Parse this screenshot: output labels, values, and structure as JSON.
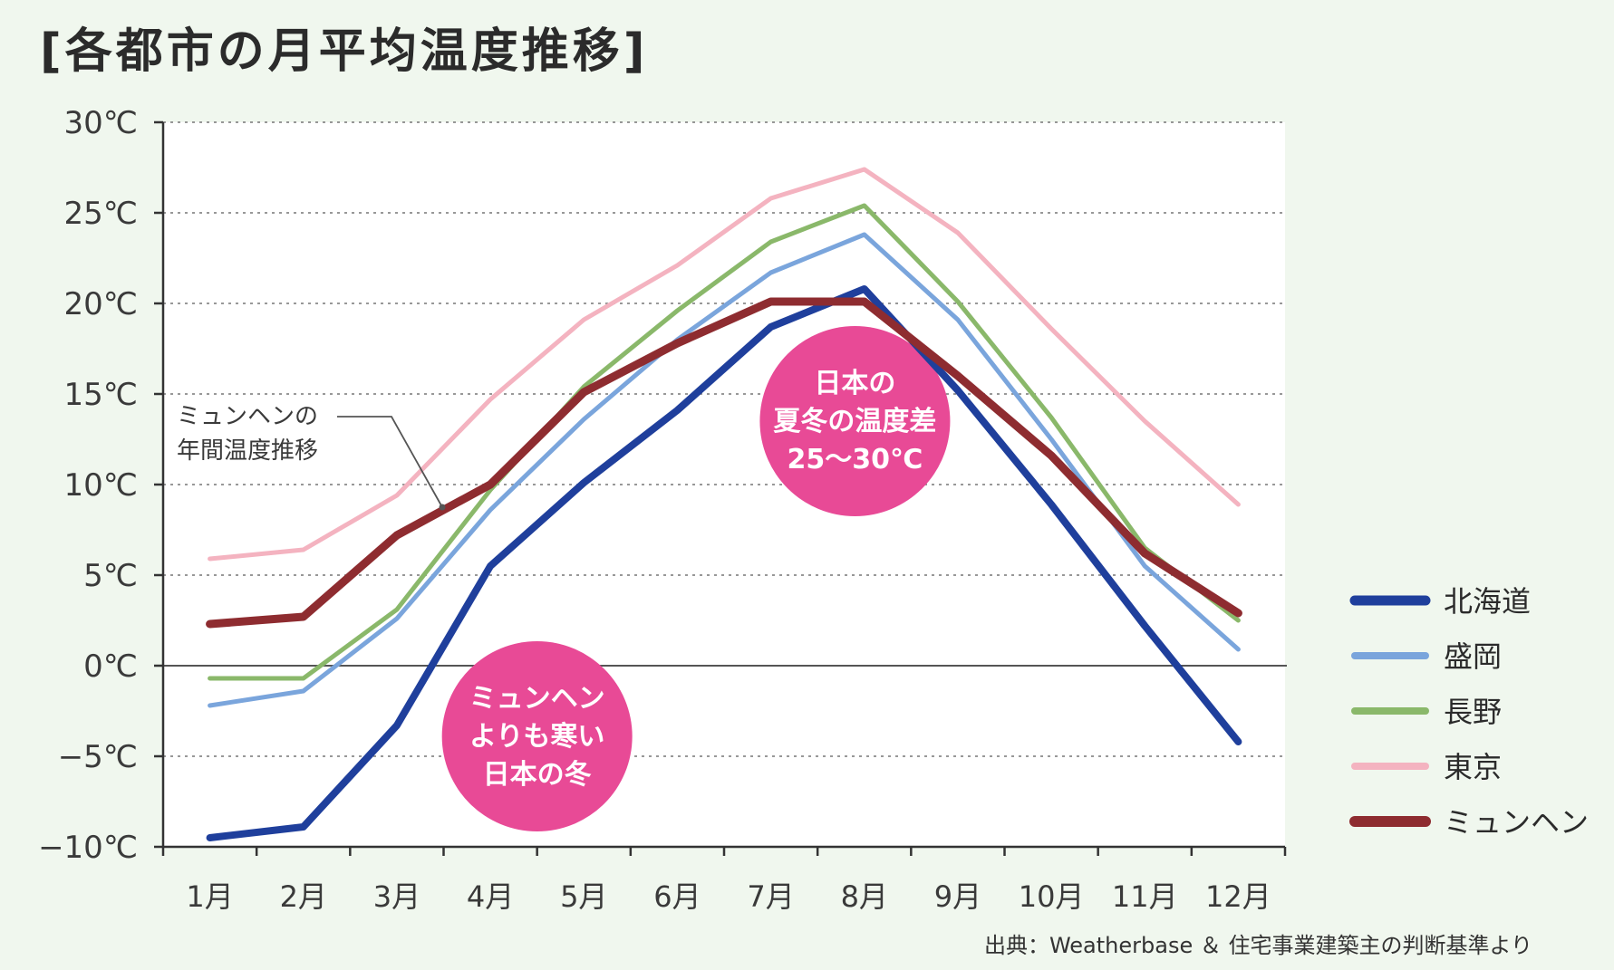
{
  "title": "[各都市の月平均温度推移]",
  "credit": "出典：Weatherbase ＆ 住宅事業建築主の判断基準より",
  "chart_data": {
    "type": "line",
    "categories": [
      "1月",
      "2月",
      "3月",
      "4月",
      "5月",
      "6月",
      "7月",
      "8月",
      "9月",
      "10月",
      "11月",
      "12月"
    ],
    "y_ticks": [
      {
        "value": 30,
        "label": "30℃"
      },
      {
        "value": 25,
        "label": "25℃"
      },
      {
        "value": 20,
        "label": "20℃"
      },
      {
        "value": 15,
        "label": "15℃"
      },
      {
        "value": 10,
        "label": "10℃"
      },
      {
        "value": 5,
        "label": "5℃"
      },
      {
        "value": 0,
        "label": "0℃"
      },
      {
        "value": -5,
        "label": "−5℃"
      },
      {
        "value": -10,
        "label": "−10℃"
      }
    ],
    "ylim": [
      -10,
      30
    ],
    "grid": true,
    "legend_position": "right",
    "series": [
      {
        "name": "北海道",
        "color": "#1f3f9c",
        "width": 8,
        "values": [
          -9.5,
          -8.9,
          -3.3,
          5.5,
          10.1,
          14.1,
          18.7,
          20.8,
          15.2,
          8.9,
          2.2,
          -4.2
        ]
      },
      {
        "name": "盛岡",
        "color": "#7aa5dc",
        "width": 5,
        "values": [
          -2.2,
          -1.4,
          2.6,
          8.6,
          13.6,
          18.0,
          21.7,
          23.8,
          19.1,
          12.5,
          5.5,
          0.9
        ]
      },
      {
        "name": "長野",
        "color": "#8ab86a",
        "width": 5,
        "values": [
          -0.7,
          -0.7,
          3.1,
          9.7,
          15.4,
          19.6,
          23.4,
          25.4,
          20.1,
          13.7,
          6.5,
          2.5
        ]
      },
      {
        "name": "東京",
        "color": "#f4b3c0",
        "width": 5,
        "values": [
          5.9,
          6.4,
          9.4,
          14.7,
          19.1,
          22.1,
          25.8,
          27.4,
          23.9,
          18.6,
          13.5,
          8.9
        ]
      },
      {
        "name": "ミュンヘン",
        "color": "#8e2c30",
        "width": 9,
        "values": [
          2.3,
          2.7,
          7.2,
          10.0,
          15.1,
          17.8,
          20.1,
          20.1,
          16.0,
          11.6,
          6.2,
          2.9
        ]
      }
    ],
    "annotations": {
      "munich_label": [
        "ミュンヘンの",
        "年間温度推移"
      ],
      "bubble_summer": [
        "日本の",
        "夏冬の温度差",
        "25〜30℃"
      ],
      "bubble_winter": [
        "ミュンヘン",
        "よりも寒い",
        "日本の冬"
      ],
      "bubble_color": "#e84a96"
    }
  }
}
